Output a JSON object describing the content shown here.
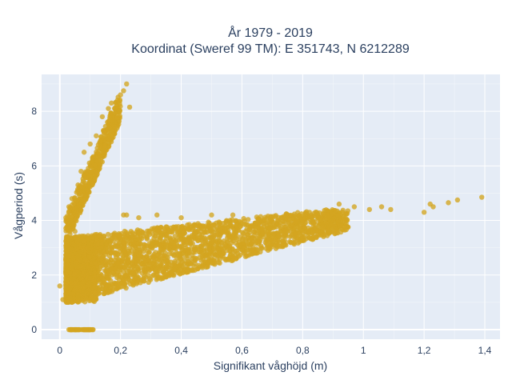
{
  "chart_data": {
    "type": "scatter",
    "title_line1": "År 1979 - 2019",
    "title_line2": "Koordinat (Sweref 99 TM): E 351743, N 6212289",
    "xlabel": "Signifikant våghöjd (m)",
    "ylabel": "Vågperiod (s)",
    "xlim": [
      -0.06,
      1.45
    ],
    "ylim": [
      -0.35,
      9.35
    ],
    "x_ticks": [
      0,
      0.2,
      0.4,
      0.6,
      0.8,
      1.0,
      1.2,
      1.4
    ],
    "x_tick_labels": [
      "0",
      "0,2",
      "0,4",
      "0,6",
      "0,8",
      "1",
      "1,2",
      "1,4"
    ],
    "y_ticks": [
      0,
      2,
      4,
      6,
      8
    ],
    "y_tick_labels": [
      "0",
      "2",
      "4",
      "6",
      "8"
    ],
    "grid": true,
    "colors": {
      "plot_bg": "#e5ecf6",
      "grid": "#ffffff",
      "marker": "#d4a520"
    },
    "clusters": {
      "zero_period": {
        "x_range": [
          0.02,
          0.11
        ],
        "y": 0
      },
      "swell_branch": {
        "x_range": [
          0.02,
          0.23
        ],
        "y_start": 3.6,
        "y_end": 9.0
      },
      "wind_sea_main": {
        "x_range": [
          0.02,
          1.1
        ],
        "y_lower_start": 1.0,
        "y_upper_start": 3.3,
        "y_end": 4.5
      }
    },
    "points": [
      {
        "x": 0.0,
        "y": 1.6
      },
      {
        "x": 0.01,
        "y": 1.1
      },
      {
        "x": 0.02,
        "y": 1.5
      },
      {
        "x": 0.03,
        "y": 2.7
      },
      {
        "x": 0.02,
        "y": 4.1
      },
      {
        "x": 0.03,
        "y": 4.5
      },
      {
        "x": 0.05,
        "y": 3.6
      },
      {
        "x": 0.04,
        "y": 4.8
      },
      {
        "x": 0.06,
        "y": 5.3
      },
      {
        "x": 0.07,
        "y": 5.8
      },
      {
        "x": 0.08,
        "y": 6.5
      },
      {
        "x": 0.1,
        "y": 6.8
      },
      {
        "x": 0.12,
        "y": 7.1
      },
      {
        "x": 0.14,
        "y": 7.8
      },
      {
        "x": 0.16,
        "y": 8.1
      },
      {
        "x": 0.17,
        "y": 8.3
      },
      {
        "x": 0.19,
        "y": 8.4
      },
      {
        "x": 0.2,
        "y": 8.6
      },
      {
        "x": 0.21,
        "y": 8.75
      },
      {
        "x": 0.22,
        "y": 9.0
      },
      {
        "x": 0.23,
        "y": 8.15
      },
      {
        "x": 0.21,
        "y": 4.2
      },
      {
        "x": 0.22,
        "y": 4.2
      },
      {
        "x": 0.26,
        "y": 4.1
      },
      {
        "x": 0.32,
        "y": 4.2
      },
      {
        "x": 0.4,
        "y": 4.1
      },
      {
        "x": 0.5,
        "y": 4.2
      },
      {
        "x": 0.57,
        "y": 4.2
      },
      {
        "x": 0.66,
        "y": 4.0
      },
      {
        "x": 0.72,
        "y": 4.0
      },
      {
        "x": 0.8,
        "y": 4.0
      },
      {
        "x": 0.86,
        "y": 4.0
      },
      {
        "x": 0.92,
        "y": 4.6
      },
      {
        "x": 0.97,
        "y": 4.5
      },
      {
        "x": 1.02,
        "y": 4.4
      },
      {
        "x": 1.06,
        "y": 4.5
      },
      {
        "x": 1.09,
        "y": 4.4
      },
      {
        "x": 1.2,
        "y": 4.3
      },
      {
        "x": 1.22,
        "y": 4.6
      },
      {
        "x": 1.23,
        "y": 4.5
      },
      {
        "x": 1.28,
        "y": 4.65
      },
      {
        "x": 1.31,
        "y": 4.75
      },
      {
        "x": 1.39,
        "y": 4.85
      },
      {
        "x": 0.06,
        "y": 1.05
      },
      {
        "x": 0.1,
        "y": 1.1
      },
      {
        "x": 0.15,
        "y": 1.5
      },
      {
        "x": 0.25,
        "y": 1.9
      },
      {
        "x": 0.35,
        "y": 2.3
      },
      {
        "x": 0.45,
        "y": 2.6
      },
      {
        "x": 0.55,
        "y": 2.9
      },
      {
        "x": 0.65,
        "y": 3.2
      }
    ]
  }
}
